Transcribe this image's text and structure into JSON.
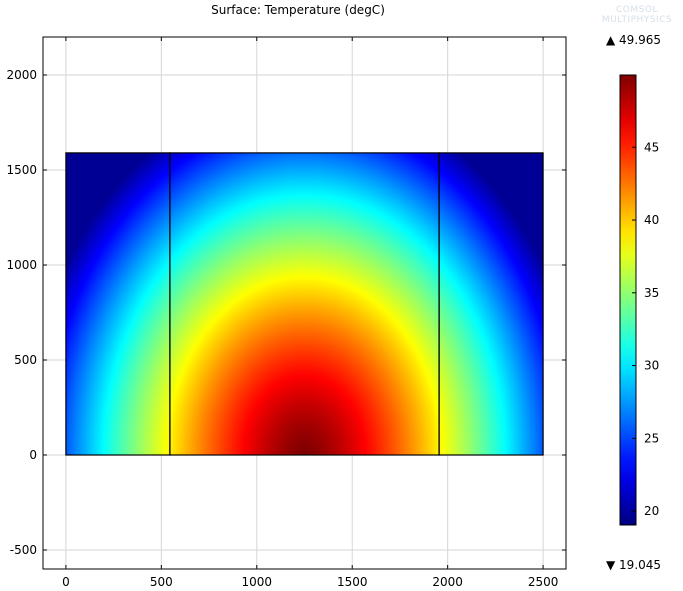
{
  "title": "Surface: Temperature (degC)",
  "watermark": {
    "line1": "COMSOL",
    "line2": "MULTIPHYSICS"
  },
  "chart_data": {
    "type": "heatmap",
    "title": "Surface: Temperature (degC)",
    "quantity": "Temperature",
    "unit": "degC",
    "xlim": [
      -120,
      2620
    ],
    "ylim": [
      -600,
      2200
    ],
    "x_ticks": [
      0,
      500,
      1000,
      1500,
      2000,
      2500
    ],
    "y_ticks": [
      -500,
      0,
      500,
      1000,
      1500,
      2000
    ],
    "grid": true,
    "domains": [
      {
        "x": [
          0,
          545
        ],
        "y": [
          0,
          1590
        ]
      },
      {
        "x": [
          545,
          1955
        ],
        "y": [
          0,
          1590
        ]
      },
      {
        "x": [
          1955,
          2500
        ],
        "y": [
          0,
          1590
        ]
      }
    ],
    "field": {
      "max_location": [
        1250,
        0
      ],
      "min_locations": [
        [
          0,
          1590
        ],
        [
          2500,
          1590
        ]
      ]
    },
    "colorbar": {
      "colormap": "jet",
      "min": 19.045,
      "max": 49.965,
      "ticks": [
        20,
        25,
        30,
        35,
        40,
        45
      ],
      "max_label": "49.965",
      "min_label": "19.045",
      "max_marker": "▲",
      "min_marker": "▼"
    }
  }
}
